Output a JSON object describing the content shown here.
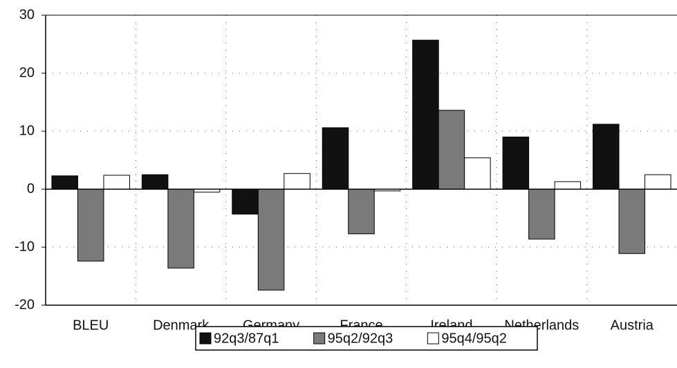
{
  "chart_data": {
    "type": "bar",
    "categories": [
      "BLEU",
      "Denmark",
      "Germany",
      "France",
      "Ireland",
      "Netherlands",
      "Austria"
    ],
    "series": [
      {
        "name": "92q3/87q1",
        "color": "#111111",
        "values": [
          2.3,
          2.5,
          -4.3,
          10.6,
          25.7,
          9.0,
          11.2
        ]
      },
      {
        "name": "95q2/92q3",
        "color": "#7a7a7a",
        "values": [
          -12.4,
          -13.6,
          -17.4,
          -7.7,
          13.6,
          -8.6,
          -11.1
        ]
      },
      {
        "name": "95q4/95q2",
        "color": "#ffffff",
        "values": [
          2.4,
          -0.5,
          2.7,
          -0.3,
          5.4,
          1.3,
          2.5
        ]
      }
    ],
    "ylim": [
      -20,
      30
    ],
    "yticks": [
      -20,
      -10,
      0,
      10,
      20,
      30
    ],
    "grid": true,
    "legend": "bottom"
  }
}
